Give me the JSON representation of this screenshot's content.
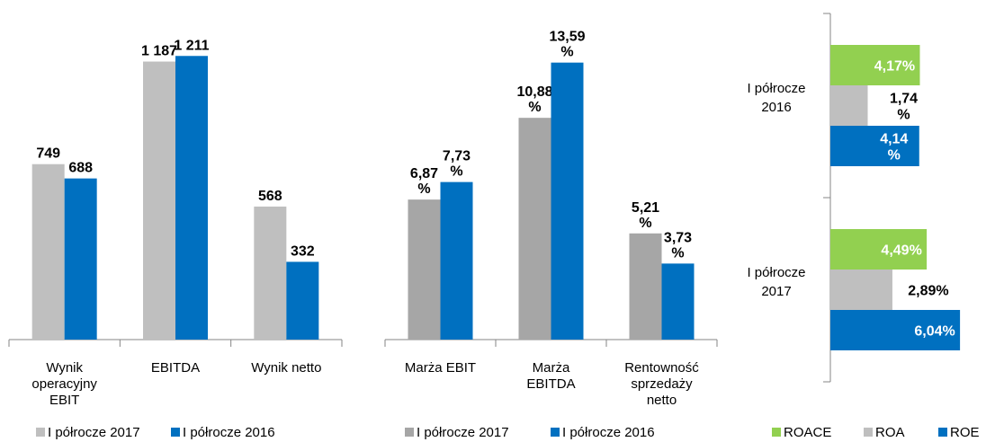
{
  "chart_data": [
    {
      "type": "bar",
      "categories": [
        [
          "Wynik",
          "operacyjny",
          "EBIT"
        ],
        [
          "EBITDA"
        ],
        [
          "Wynik netto"
        ]
      ],
      "series": [
        {
          "name": "I półrocze 2017",
          "color": "#bfbfbf",
          "values": [
            749,
            1187,
            568
          ],
          "value_labels": [
            [
              "749"
            ],
            [
              "1 187"
            ],
            [
              "568"
            ]
          ]
        },
        {
          "name": "I półrocze 2016",
          "color": "#0070c0",
          "values": [
            688,
            1211,
            332
          ],
          "value_labels": [
            [
              "688"
            ],
            [
              "1 211"
            ],
            [
              "332"
            ]
          ]
        }
      ],
      "ylim": [
        0,
        1400
      ]
    },
    {
      "type": "bar",
      "categories": [
        [
          "Marża EBIT"
        ],
        [
          "Marża",
          "EBITDA"
        ],
        [
          "Rentowność",
          "sprzedaży",
          "netto"
        ]
      ],
      "series": [
        {
          "name": "I półrocze 2017",
          "color": "#a6a6a6",
          "values": [
            6.87,
            10.88,
            5.21
          ],
          "value_labels": [
            [
              "6,87",
              "%"
            ],
            [
              "10,88",
              "%"
            ],
            [
              "5,21",
              "%"
            ]
          ]
        },
        {
          "name": "I półrocze 2016",
          "color": "#0070c0",
          "values": [
            7.73,
            13.59,
            3.73
          ],
          "value_labels": [
            [
              "7,73",
              "%"
            ],
            [
              "13,59",
              "%"
            ],
            [
              "3,73",
              "%"
            ]
          ]
        }
      ],
      "ylim": [
        0,
        16
      ]
    },
    {
      "type": "barh",
      "categories": [
        [
          "I półrocze",
          "2016"
        ],
        [
          "I półrocze",
          "2017"
        ]
      ],
      "series": [
        {
          "name": "ROACE",
          "color": "#92d050",
          "values": [
            4.17,
            4.49
          ],
          "value_labels": [
            [
              "4,17%"
            ],
            [
              "4,49%"
            ]
          ]
        },
        {
          "name": "ROA",
          "color": "#bfbfbf",
          "values": [
            1.74,
            2.89
          ],
          "value_labels": [
            [
              "1,74",
              "%"
            ],
            [
              "2,89%"
            ]
          ]
        },
        {
          "name": "ROE",
          "color": "#0070c0",
          "values": [
            4.14,
            6.04
          ],
          "value_labels": [
            [
              "4,14",
              "%"
            ],
            [
              "6,04%"
            ]
          ]
        }
      ],
      "xlim": [
        0,
        7
      ]
    }
  ]
}
